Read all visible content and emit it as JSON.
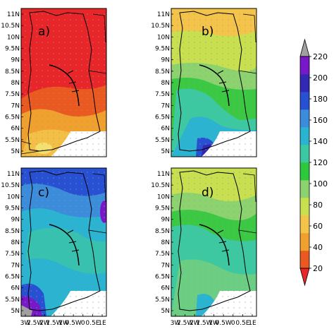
{
  "panels": [
    {
      "label": "a)",
      "theme": "warm"
    },
    {
      "label": "b)",
      "theme": "mild"
    },
    {
      "label": "c)",
      "theme": "cool"
    },
    {
      "label": "d)",
      "theme": "mild2"
    }
  ],
  "lat_ticks": [
    "11N",
    "10.5N",
    "10N",
    "9.5N",
    "9N",
    "8.5N",
    "8N",
    "7.5N",
    "7N",
    "6.5N",
    "6N",
    "5.5N",
    "5N"
  ],
  "lon_ticks": [
    "3W",
    "2.5W",
    "2W",
    "1.5W",
    "1W",
    "0.5W",
    "0",
    "0.5E",
    "1E"
  ],
  "colorbar": {
    "ticks": [
      "20",
      "40",
      "60",
      "80",
      "100",
      "120",
      "140",
      "160",
      "180",
      "200",
      "220"
    ],
    "colors": [
      "#e8262a",
      "#ea5a20",
      "#f0a02d",
      "#f4c44a",
      "#c8e050",
      "#8cd26e",
      "#2dc83c",
      "#3cc8a0",
      "#2ab4d2",
      "#3c8cdc",
      "#2850d2",
      "#3228b4",
      "#7818c8",
      "#a0a0a0"
    ]
  }
}
